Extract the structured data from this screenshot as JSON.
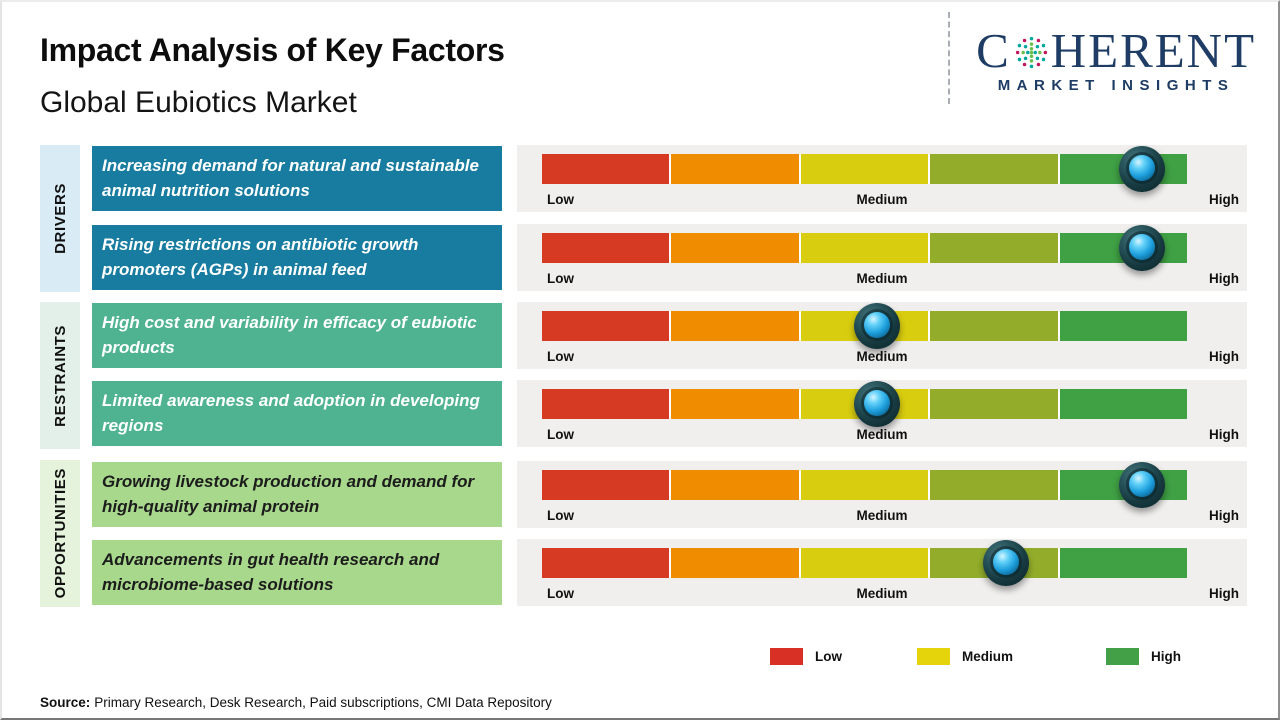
{
  "header": {
    "title": "Impact Analysis of Key Factors",
    "subtitle": "Global Eubiotics Market"
  },
  "logo": {
    "brand_prefix": "C",
    "brand_suffix": "HERENT",
    "tagline": "MARKET INSIGHTS",
    "brand_color": "#1e3c64"
  },
  "scale_labels": {
    "low": "Low",
    "medium": "Medium",
    "high": "High"
  },
  "groups": [
    {
      "label": "DRIVERS",
      "strip_color": "#d9ecf6",
      "box_color": "#177c9f",
      "text_color": "#ffffff"
    },
    {
      "label": "RESTRAINTS",
      "strip_color": "#e3f0ea",
      "box_color": "#4fb391",
      "text_color": "#ffffff"
    },
    {
      "label": "OPPORTUNITIES",
      "strip_color": "#e5f3dc",
      "box_color": "#a8d88c",
      "text_color": "#1c1c1c"
    }
  ],
  "rows": [
    {
      "group": 0,
      "text": "Increasing demand for natural and sustainable animal nutrition solutions",
      "impact_percent": 93
    },
    {
      "group": 0,
      "text": "Rising restrictions on antibiotic growth promoters (AGPs) in animal feed",
      "impact_percent": 93
    },
    {
      "group": 1,
      "text": "High cost and variability in efficacy of eubiotic products",
      "impact_percent": 52
    },
    {
      "group": 1,
      "text": "Limited awareness and adoption in developing regions",
      "impact_percent": 52
    },
    {
      "group": 2,
      "text": "Growing livestock production and demand for high-quality animal protein",
      "impact_percent": 93
    },
    {
      "group": 2,
      "text": "Advancements in gut health research and microbiome-based solutions",
      "impact_percent": 72
    }
  ],
  "bar": {
    "segment_colors": [
      "#d63a22",
      "#ef8c00",
      "#d9cd10",
      "#93ad2b",
      "#3fa044"
    ]
  },
  "legend": {
    "items": [
      {
        "label": "Low",
        "color": "#d93025"
      },
      {
        "label": "Medium",
        "color": "#e5d40c"
      },
      {
        "label": "High",
        "color": "#43a047"
      }
    ]
  },
  "source": {
    "prefix": "Source:",
    "text": "Primary Research, Desk Research, Paid subscriptions, CMI Data Repository"
  },
  "chart_data": {
    "type": "bar",
    "title": "Impact Analysis of Key Factors",
    "subtitle": "Global Eubiotics Market",
    "scale": [
      "Low",
      "Medium",
      "High"
    ],
    "legend_entries": [
      "Low",
      "Medium",
      "High"
    ],
    "legend_position": "bottom",
    "groups": [
      "Drivers",
      "Drivers",
      "Restraints",
      "Restraints",
      "Opportunities",
      "Opportunities"
    ],
    "categories": [
      "Increasing demand for natural and sustainable animal nutrition solutions",
      "Rising restrictions on antibiotic growth promoters (AGPs) in animal feed",
      "High cost and variability in efficacy of eubiotic products",
      "Limited awareness and adoption in developing regions",
      "Growing livestock production and demand for high-quality animal protein",
      "Advancements in gut health research and microbiome-based solutions"
    ],
    "series": [
      {
        "name": "Impact level marker position (% of Low→High scale)",
        "values": [
          93,
          93,
          52,
          52,
          93,
          72
        ],
        "levels": [
          "High",
          "High",
          "Medium",
          "Medium",
          "High",
          "Medium-High"
        ]
      }
    ]
  }
}
